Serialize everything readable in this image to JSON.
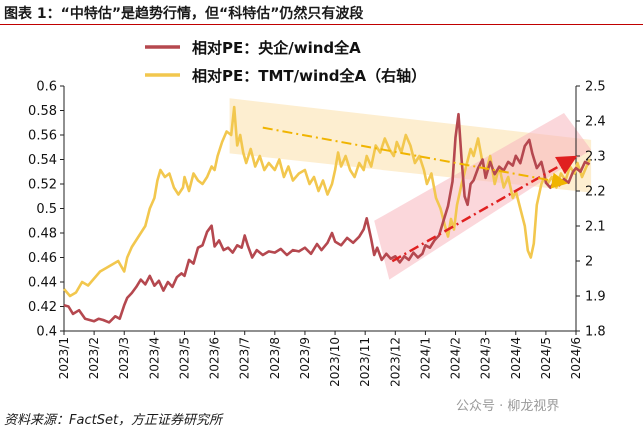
{
  "title": "图表 1：“中特估”是趋势行情，但“科特估”仍然只有波段",
  "source": "资料来源：FactSet，方正证券研究所",
  "watermark": "公众号 · 柳龙视界",
  "colors": {
    "series1": "#b5484f",
    "series2": "#f2c74e",
    "band_up": "#f7b7bd",
    "band_down": "#fbe3b0",
    "arrow_red": "#e02020",
    "arrow_yellow": "#f0b400",
    "title_rule": "#c00000"
  },
  "chart_data": {
    "type": "line",
    "legend": [
      "相对PE：央企/wind全A",
      "相对PE：TMT/wind全A（右轴）"
    ],
    "x_ticks": [
      "2023/1",
      "2023/2",
      "2023/3",
      "2023/4",
      "2023/5",
      "2023/6",
      "2023/7",
      "2023/8",
      "2023/9",
      "2023/10",
      "2023/11",
      "2023/12",
      "2024/1",
      "2024/2",
      "2024/3",
      "2024/4",
      "2024/5",
      "2024/6"
    ],
    "y_left": {
      "min": 0.4,
      "max": 0.6,
      "ticks": [
        "0.4",
        "0.42",
        "0.44",
        "0.46",
        "0.48",
        "0.5",
        "0.52",
        "0.54",
        "0.56",
        "0.58",
        "0.6"
      ]
    },
    "y_right": {
      "min": 1.8,
      "max": 2.5,
      "ticks": [
        "1.8",
        "1.9",
        "2",
        "2.1",
        "2.2",
        "2.3",
        "2.4",
        "2.5"
      ]
    },
    "series": [
      {
        "name": "相对PE：央企/wind全A",
        "axis": "left",
        "points": [
          [
            0.0,
            0.421
          ],
          [
            0.15,
            0.42
          ],
          [
            0.3,
            0.414
          ],
          [
            0.5,
            0.417
          ],
          [
            0.7,
            0.41
          ],
          [
            0.85,
            0.409
          ],
          [
            1.0,
            0.408
          ],
          [
            1.15,
            0.41
          ],
          [
            1.3,
            0.409
          ],
          [
            1.5,
            0.407
          ],
          [
            1.7,
            0.412
          ],
          [
            1.85,
            0.41
          ],
          [
            2.0,
            0.421
          ],
          [
            2.1,
            0.427
          ],
          [
            2.25,
            0.431
          ],
          [
            2.4,
            0.436
          ],
          [
            2.55,
            0.442
          ],
          [
            2.7,
            0.438
          ],
          [
            2.85,
            0.445
          ],
          [
            3.0,
            0.437
          ],
          [
            3.15,
            0.441
          ],
          [
            3.3,
            0.433
          ],
          [
            3.45,
            0.44
          ],
          [
            3.6,
            0.436
          ],
          [
            3.75,
            0.444
          ],
          [
            3.9,
            0.447
          ],
          [
            4.0,
            0.445
          ],
          [
            4.15,
            0.458
          ],
          [
            4.3,
            0.455
          ],
          [
            4.45,
            0.468
          ],
          [
            4.6,
            0.47
          ],
          [
            4.75,
            0.481
          ],
          [
            4.9,
            0.486
          ],
          [
            5.0,
            0.469
          ],
          [
            5.15,
            0.474
          ],
          [
            5.3,
            0.466
          ],
          [
            5.45,
            0.468
          ],
          [
            5.6,
            0.464
          ],
          [
            5.75,
            0.47
          ],
          [
            5.9,
            0.468
          ],
          [
            6.0,
            0.478
          ],
          [
            6.1,
            0.47
          ],
          [
            6.25,
            0.46
          ],
          [
            6.4,
            0.466
          ],
          [
            6.6,
            0.462
          ],
          [
            6.8,
            0.465
          ],
          [
            7.0,
            0.464
          ],
          [
            7.2,
            0.467
          ],
          [
            7.4,
            0.462
          ],
          [
            7.6,
            0.466
          ],
          [
            7.8,
            0.465
          ],
          [
            8.0,
            0.468
          ],
          [
            8.2,
            0.463
          ],
          [
            8.4,
            0.471
          ],
          [
            8.55,
            0.466
          ],
          [
            8.75,
            0.472
          ],
          [
            8.9,
            0.48
          ],
          [
            9.0,
            0.473
          ],
          [
            9.2,
            0.47
          ],
          [
            9.4,
            0.476
          ],
          [
            9.6,
            0.472
          ],
          [
            9.8,
            0.477
          ],
          [
            9.95,
            0.483
          ],
          [
            10.05,
            0.492
          ],
          [
            10.2,
            0.475
          ],
          [
            10.3,
            0.462
          ],
          [
            10.4,
            0.468
          ],
          [
            10.55,
            0.458
          ],
          [
            10.7,
            0.463
          ],
          [
            10.85,
            0.459
          ],
          [
            11.0,
            0.461
          ],
          [
            11.15,
            0.456
          ],
          [
            11.3,
            0.461
          ],
          [
            11.45,
            0.458
          ],
          [
            11.6,
            0.464
          ],
          [
            11.75,
            0.46
          ],
          [
            11.9,
            0.463
          ],
          [
            12.0,
            0.47
          ],
          [
            12.15,
            0.468
          ],
          [
            12.3,
            0.474
          ],
          [
            12.45,
            0.478
          ],
          [
            12.6,
            0.49
          ],
          [
            12.75,
            0.502
          ],
          [
            12.9,
            0.522
          ],
          [
            13.0,
            0.558
          ],
          [
            13.1,
            0.577
          ],
          [
            13.2,
            0.54
          ],
          [
            13.3,
            0.51
          ],
          [
            13.4,
            0.503
          ],
          [
            13.5,
            0.52
          ],
          [
            13.6,
            0.523
          ],
          [
            13.75,
            0.533
          ],
          [
            13.9,
            0.54
          ],
          [
            14.0,
            0.525
          ],
          [
            14.15,
            0.538
          ],
          [
            14.3,
            0.528
          ],
          [
            14.45,
            0.534
          ],
          [
            14.6,
            0.531
          ],
          [
            14.75,
            0.538
          ],
          [
            14.9,
            0.535
          ],
          [
            15.0,
            0.543
          ],
          [
            15.15,
            0.537
          ],
          [
            15.3,
            0.551
          ],
          [
            15.45,
            0.556
          ],
          [
            15.55,
            0.545
          ],
          [
            15.7,
            0.533
          ],
          [
            15.85,
            0.538
          ],
          [
            15.95,
            0.528
          ],
          [
            16.0,
            0.521
          ],
          [
            16.15,
            0.517
          ],
          [
            16.3,
            0.522
          ],
          [
            16.45,
            0.519
          ],
          [
            16.6,
            0.524
          ],
          [
            16.75,
            0.521
          ],
          [
            16.9,
            0.53
          ],
          [
            17.0,
            0.533
          ],
          [
            17.15,
            0.53
          ],
          [
            17.3,
            0.538
          ],
          [
            17.45,
            0.536
          ]
        ]
      },
      {
        "name": "相对PE：TMT/wind全A（右轴）",
        "axis": "right",
        "points": [
          [
            0.0,
            1.92
          ],
          [
            0.2,
            1.9
          ],
          [
            0.4,
            1.91
          ],
          [
            0.6,
            1.94
          ],
          [
            0.8,
            1.93
          ],
          [
            1.0,
            1.95
          ],
          [
            1.2,
            1.97
          ],
          [
            1.4,
            1.98
          ],
          [
            1.6,
            1.99
          ],
          [
            1.8,
            2.0
          ],
          [
            2.0,
            1.97
          ],
          [
            2.1,
            2.01
          ],
          [
            2.25,
            2.04
          ],
          [
            2.4,
            2.06
          ],
          [
            2.55,
            2.08
          ],
          [
            2.7,
            2.1
          ],
          [
            2.85,
            2.15
          ],
          [
            3.0,
            2.18
          ],
          [
            3.1,
            2.23
          ],
          [
            3.2,
            2.26
          ],
          [
            3.35,
            2.24
          ],
          [
            3.5,
            2.25
          ],
          [
            3.65,
            2.21
          ],
          [
            3.8,
            2.19
          ],
          [
            3.95,
            2.21
          ],
          [
            4.0,
            2.24
          ],
          [
            4.15,
            2.2
          ],
          [
            4.3,
            2.25
          ],
          [
            4.45,
            2.23
          ],
          [
            4.6,
            2.22
          ],
          [
            4.75,
            2.24
          ],
          [
            4.9,
            2.27
          ],
          [
            5.0,
            2.26
          ],
          [
            5.1,
            2.3
          ],
          [
            5.25,
            2.34
          ],
          [
            5.4,
            2.37
          ],
          [
            5.55,
            2.36
          ],
          [
            5.65,
            2.44
          ],
          [
            5.75,
            2.33
          ],
          [
            5.85,
            2.36
          ],
          [
            5.95,
            2.31
          ],
          [
            6.05,
            2.28
          ],
          [
            6.2,
            2.32
          ],
          [
            6.35,
            2.27
          ],
          [
            6.5,
            2.3
          ],
          [
            6.65,
            2.26
          ],
          [
            6.8,
            2.28
          ],
          [
            7.0,
            2.26
          ],
          [
            7.15,
            2.29
          ],
          [
            7.3,
            2.24
          ],
          [
            7.45,
            2.27
          ],
          [
            7.6,
            2.23
          ],
          [
            7.8,
            2.25
          ],
          [
            8.0,
            2.26
          ],
          [
            8.15,
            2.22
          ],
          [
            8.3,
            2.24
          ],
          [
            8.45,
            2.2
          ],
          [
            8.6,
            2.23
          ],
          [
            8.75,
            2.19
          ],
          [
            8.9,
            2.22
          ],
          [
            9.0,
            2.26
          ],
          [
            9.1,
            2.31
          ],
          [
            9.2,
            2.27
          ],
          [
            9.35,
            2.3
          ],
          [
            9.5,
            2.26
          ],
          [
            9.65,
            2.24
          ],
          [
            9.8,
            2.28
          ],
          [
            9.95,
            2.26
          ],
          [
            10.05,
            2.3
          ],
          [
            10.2,
            2.27
          ],
          [
            10.35,
            2.33
          ],
          [
            10.5,
            2.31
          ],
          [
            10.65,
            2.35
          ],
          [
            10.8,
            2.32
          ],
          [
            10.95,
            2.3
          ],
          [
            11.05,
            2.34
          ],
          [
            11.2,
            2.31
          ],
          [
            11.35,
            2.36
          ],
          [
            11.5,
            2.33
          ],
          [
            11.65,
            2.28
          ],
          [
            11.8,
            2.3
          ],
          [
            11.95,
            2.26
          ],
          [
            12.05,
            2.22
          ],
          [
            12.2,
            2.25
          ],
          [
            12.35,
            2.18
          ],
          [
            12.5,
            2.15
          ],
          [
            12.65,
            2.1
          ],
          [
            12.75,
            2.07
          ],
          [
            12.85,
            2.12
          ],
          [
            12.95,
            2.09
          ],
          [
            13.05,
            2.16
          ],
          [
            13.2,
            2.22
          ],
          [
            13.35,
            2.27
          ],
          [
            13.5,
            2.32
          ],
          [
            13.6,
            2.3
          ],
          [
            13.75,
            2.35
          ],
          [
            13.9,
            2.28
          ],
          [
            14.0,
            2.25
          ],
          [
            14.15,
            2.3
          ],
          [
            14.3,
            2.22
          ],
          [
            14.45,
            2.27
          ],
          [
            14.6,
            2.21
          ],
          [
            14.75,
            2.24
          ],
          [
            14.9,
            2.18
          ],
          [
            15.0,
            2.2
          ],
          [
            15.15,
            2.15
          ],
          [
            15.3,
            2.1
          ],
          [
            15.4,
            2.03
          ],
          [
            15.5,
            2.01
          ],
          [
            15.6,
            2.05
          ],
          [
            15.7,
            2.16
          ],
          [
            15.85,
            2.22
          ],
          [
            15.95,
            2.24
          ],
          [
            16.05,
            2.22
          ],
          [
            16.2,
            2.24
          ],
          [
            16.35,
            2.21
          ],
          [
            16.5,
            2.25
          ],
          [
            16.65,
            2.23
          ],
          [
            16.8,
            2.27
          ],
          [
            16.95,
            2.25
          ],
          [
            17.05,
            2.28
          ],
          [
            17.2,
            2.24
          ],
          [
            17.35,
            2.27
          ],
          [
            17.45,
            2.29
          ]
        ]
      }
    ]
  }
}
